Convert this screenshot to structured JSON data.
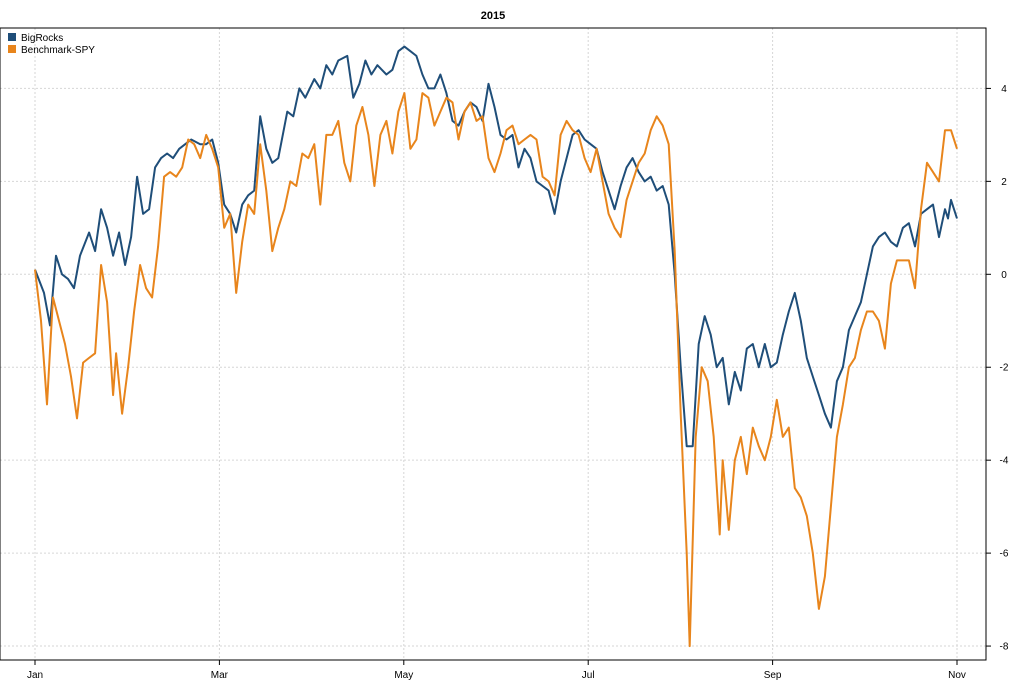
{
  "chart_data": {
    "type": "line",
    "title": "2015",
    "xlabel": "",
    "ylabel": "",
    "x_ticks": [
      "Jan",
      "Mar",
      "May",
      "Jul",
      "Sep",
      "Nov"
    ],
    "y_ticks": [
      4,
      2,
      0,
      -2,
      -4,
      -6,
      -8
    ],
    "ylim": [
      -8.3,
      5.3
    ],
    "xlim": [
      0,
      307
    ],
    "grid": true,
    "legend_position": "top-left",
    "colors": {
      "BigRocks": "#1f4e79",
      "Benchmark-SPY": "#e8851c"
    },
    "series": [
      {
        "name": "BigRocks",
        "points": [
          [
            0,
            0.1
          ],
          [
            3,
            -0.4
          ],
          [
            5,
            -1.1
          ],
          [
            7,
            0.4
          ],
          [
            9,
            0.0
          ],
          [
            11,
            -0.1
          ],
          [
            13,
            -0.3
          ],
          [
            15,
            0.4
          ],
          [
            18,
            0.9
          ],
          [
            20,
            0.5
          ],
          [
            22,
            1.4
          ],
          [
            24,
            1.0
          ],
          [
            26,
            0.4
          ],
          [
            28,
            0.9
          ],
          [
            30,
            0.2
          ],
          [
            32,
            0.8
          ],
          [
            34,
            2.1
          ],
          [
            36,
            1.3
          ],
          [
            38,
            1.4
          ],
          [
            40,
            2.3
          ],
          [
            42,
            2.5
          ],
          [
            44,
            2.6
          ],
          [
            46,
            2.5
          ],
          [
            48,
            2.7
          ],
          [
            50,
            2.8
          ],
          [
            52,
            2.9
          ],
          [
            55,
            2.8
          ],
          [
            57,
            2.8
          ],
          [
            59,
            2.9
          ],
          [
            61,
            2.4
          ],
          [
            63,
            1.5
          ],
          [
            65,
            1.3
          ],
          [
            67,
            0.9
          ],
          [
            69,
            1.5
          ],
          [
            71,
            1.7
          ],
          [
            73,
            1.8
          ],
          [
            75,
            3.4
          ],
          [
            77,
            2.7
          ],
          [
            79,
            2.4
          ],
          [
            81,
            2.5
          ],
          [
            84,
            3.5
          ],
          [
            86,
            3.4
          ],
          [
            88,
            4.0
          ],
          [
            90,
            3.8
          ],
          [
            93,
            4.2
          ],
          [
            95,
            4.0
          ],
          [
            97,
            4.5
          ],
          [
            99,
            4.3
          ],
          [
            101,
            4.6
          ],
          [
            104,
            4.7
          ],
          [
            106,
            3.8
          ],
          [
            108,
            4.1
          ],
          [
            110,
            4.6
          ],
          [
            112,
            4.3
          ],
          [
            114,
            4.5
          ],
          [
            117,
            4.3
          ],
          [
            119,
            4.4
          ],
          [
            121,
            4.8
          ],
          [
            123,
            4.9
          ],
          [
            125,
            4.8
          ],
          [
            127,
            4.7
          ],
          [
            129,
            4.3
          ],
          [
            131,
            4.0
          ],
          [
            133,
            4.0
          ],
          [
            135,
            4.3
          ],
          [
            137,
            3.9
          ],
          [
            139,
            3.3
          ],
          [
            141,
            3.2
          ],
          [
            143,
            3.5
          ],
          [
            145,
            3.7
          ],
          [
            147,
            3.6
          ],
          [
            149,
            3.3
          ],
          [
            151,
            4.1
          ],
          [
            153,
            3.6
          ],
          [
            155,
            3.0
          ],
          [
            157,
            2.9
          ],
          [
            159,
            3.0
          ],
          [
            161,
            2.3
          ],
          [
            163,
            2.7
          ],
          [
            165,
            2.5
          ],
          [
            167,
            2.0
          ],
          [
            169,
            1.9
          ],
          [
            171,
            1.8
          ],
          [
            173,
            1.3
          ],
          [
            175,
            2.0
          ],
          [
            177,
            2.5
          ],
          [
            179,
            3.0
          ],
          [
            181,
            3.1
          ],
          [
            183,
            2.9
          ],
          [
            185,
            2.8
          ],
          [
            187,
            2.7
          ],
          [
            189,
            2.2
          ],
          [
            191,
            1.8
          ],
          [
            193,
            1.4
          ],
          [
            195,
            1.9
          ],
          [
            197,
            2.3
          ],
          [
            199,
            2.5
          ],
          [
            201,
            2.2
          ],
          [
            203,
            2.0
          ],
          [
            205,
            2.1
          ],
          [
            207,
            1.8
          ],
          [
            209,
            1.9
          ],
          [
            211,
            1.5
          ],
          [
            213,
            0.0
          ],
          [
            215,
            -2.0
          ],
          [
            217,
            -3.7
          ],
          [
            219,
            -3.7
          ],
          [
            221,
            -1.5
          ],
          [
            223,
            -0.9
          ],
          [
            225,
            -1.3
          ],
          [
            227,
            -2.0
          ],
          [
            229,
            -1.8
          ],
          [
            231,
            -2.8
          ],
          [
            233,
            -2.1
          ],
          [
            235,
            -2.5
          ],
          [
            237,
            -1.6
          ],
          [
            239,
            -1.5
          ],
          [
            241,
            -2.0
          ],
          [
            243,
            -1.5
          ],
          [
            245,
            -2.0
          ],
          [
            247,
            -1.9
          ],
          [
            249,
            -1.3
          ],
          [
            251,
            -0.8
          ],
          [
            253,
            -0.4
          ],
          [
            255,
            -1.0
          ],
          [
            257,
            -1.8
          ],
          [
            259,
            -2.2
          ],
          [
            261,
            -2.6
          ],
          [
            263,
            -3.0
          ],
          [
            265,
            -3.3
          ],
          [
            267,
            -2.3
          ],
          [
            269,
            -2.0
          ],
          [
            271,
            -1.2
          ],
          [
            273,
            -0.9
          ],
          [
            275,
            -0.6
          ],
          [
            277,
            0.0
          ],
          [
            279,
            0.6
          ],
          [
            281,
            0.8
          ],
          [
            283,
            0.9
          ],
          [
            285,
            0.7
          ],
          [
            287,
            0.6
          ],
          [
            289,
            1.0
          ],
          [
            291,
            1.1
          ],
          [
            293,
            0.6
          ],
          [
            295,
            1.3
          ],
          [
            297,
            1.4
          ],
          [
            299,
            1.5
          ],
          [
            301,
            0.8
          ],
          [
            303,
            1.4
          ],
          [
            304,
            1.2
          ],
          [
            305,
            1.6
          ],
          [
            307,
            1.2
          ]
        ]
      },
      {
        "name": "Benchmark-SPY",
        "points": [
          [
            0,
            0.1
          ],
          [
            2,
            -1.0
          ],
          [
            4,
            -2.8
          ],
          [
            6,
            -0.5
          ],
          [
            8,
            -1.0
          ],
          [
            10,
            -1.5
          ],
          [
            12,
            -2.2
          ],
          [
            14,
            -3.1
          ],
          [
            16,
            -1.9
          ],
          [
            18,
            -1.8
          ],
          [
            20,
            -1.7
          ],
          [
            22,
            0.2
          ],
          [
            24,
            -0.6
          ],
          [
            26,
            -2.6
          ],
          [
            27,
            -1.7
          ],
          [
            29,
            -3.0
          ],
          [
            31,
            -2.0
          ],
          [
            33,
            -0.8
          ],
          [
            35,
            0.2
          ],
          [
            37,
            -0.3
          ],
          [
            39,
            -0.5
          ],
          [
            41,
            0.6
          ],
          [
            43,
            2.1
          ],
          [
            45,
            2.2
          ],
          [
            47,
            2.1
          ],
          [
            49,
            2.3
          ],
          [
            51,
            2.9
          ],
          [
            53,
            2.8
          ],
          [
            55,
            2.5
          ],
          [
            57,
            3.0
          ],
          [
            59,
            2.7
          ],
          [
            61,
            2.3
          ],
          [
            63,
            1.0
          ],
          [
            65,
            1.3
          ],
          [
            67,
            -0.4
          ],
          [
            69,
            0.7
          ],
          [
            71,
            1.5
          ],
          [
            73,
            1.3
          ],
          [
            75,
            2.8
          ],
          [
            77,
            1.8
          ],
          [
            79,
            0.5
          ],
          [
            81,
            1.0
          ],
          [
            83,
            1.4
          ],
          [
            85,
            2.0
          ],
          [
            87,
            1.9
          ],
          [
            89,
            2.6
          ],
          [
            91,
            2.5
          ],
          [
            93,
            2.8
          ],
          [
            95,
            1.5
          ],
          [
            97,
            3.0
          ],
          [
            99,
            3.0
          ],
          [
            101,
            3.3
          ],
          [
            103,
            2.4
          ],
          [
            105,
            2.0
          ],
          [
            107,
            3.2
          ],
          [
            109,
            3.6
          ],
          [
            111,
            3.0
          ],
          [
            113,
            1.9
          ],
          [
            115,
            3.0
          ],
          [
            117,
            3.3
          ],
          [
            119,
            2.6
          ],
          [
            121,
            3.5
          ],
          [
            123,
            3.9
          ],
          [
            125,
            2.7
          ],
          [
            127,
            2.9
          ],
          [
            129,
            3.9
          ],
          [
            131,
            3.8
          ],
          [
            133,
            3.2
          ],
          [
            135,
            3.5
          ],
          [
            137,
            3.8
          ],
          [
            139,
            3.7
          ],
          [
            141,
            2.9
          ],
          [
            143,
            3.5
          ],
          [
            145,
            3.7
          ],
          [
            147,
            3.3
          ],
          [
            149,
            3.4
          ],
          [
            151,
            2.5
          ],
          [
            153,
            2.2
          ],
          [
            155,
            2.6
          ],
          [
            157,
            3.1
          ],
          [
            159,
            3.2
          ],
          [
            161,
            2.8
          ],
          [
            163,
            2.9
          ],
          [
            165,
            3.0
          ],
          [
            167,
            2.9
          ],
          [
            169,
            2.1
          ],
          [
            171,
            2.0
          ],
          [
            173,
            1.7
          ],
          [
            175,
            3.0
          ],
          [
            177,
            3.3
          ],
          [
            179,
            3.1
          ],
          [
            181,
            3.0
          ],
          [
            183,
            2.5
          ],
          [
            185,
            2.2
          ],
          [
            187,
            2.7
          ],
          [
            189,
            2.0
          ],
          [
            191,
            1.3
          ],
          [
            193,
            1.0
          ],
          [
            195,
            0.8
          ],
          [
            197,
            1.6
          ],
          [
            199,
            2.0
          ],
          [
            201,
            2.4
          ],
          [
            203,
            2.6
          ],
          [
            205,
            3.1
          ],
          [
            207,
            3.4
          ],
          [
            209,
            3.2
          ],
          [
            211,
            2.8
          ],
          [
            213,
            0.5
          ],
          [
            215,
            -3.0
          ],
          [
            217,
            -6.0
          ],
          [
            218,
            -8.0
          ],
          [
            220,
            -3.5
          ],
          [
            222,
            -2.0
          ],
          [
            224,
            -2.3
          ],
          [
            226,
            -3.5
          ],
          [
            228,
            -5.6
          ],
          [
            229,
            -4.0
          ],
          [
            231,
            -5.5
          ],
          [
            233,
            -4.0
          ],
          [
            235,
            -3.5
          ],
          [
            237,
            -4.3
          ],
          [
            239,
            -3.3
          ],
          [
            241,
            -3.7
          ],
          [
            243,
            -4.0
          ],
          [
            245,
            -3.5
          ],
          [
            247,
            -2.7
          ],
          [
            249,
            -3.5
          ],
          [
            251,
            -3.3
          ],
          [
            253,
            -4.6
          ],
          [
            255,
            -4.8
          ],
          [
            257,
            -5.2
          ],
          [
            259,
            -6.0
          ],
          [
            261,
            -7.2
          ],
          [
            263,
            -6.5
          ],
          [
            265,
            -5.0
          ],
          [
            267,
            -3.5
          ],
          [
            269,
            -2.8
          ],
          [
            271,
            -2.0
          ],
          [
            273,
            -1.8
          ],
          [
            275,
            -1.2
          ],
          [
            277,
            -0.8
          ],
          [
            279,
            -0.8
          ],
          [
            281,
            -1.0
          ],
          [
            283,
            -1.6
          ],
          [
            285,
            -0.2
          ],
          [
            287,
            0.3
          ],
          [
            289,
            0.3
          ],
          [
            291,
            0.3
          ],
          [
            293,
            -0.3
          ],
          [
            295,
            1.4
          ],
          [
            297,
            2.4
          ],
          [
            299,
            2.2
          ],
          [
            301,
            2.0
          ],
          [
            303,
            3.1
          ],
          [
            305,
            3.1
          ],
          [
            307,
            2.7
          ]
        ]
      }
    ]
  }
}
